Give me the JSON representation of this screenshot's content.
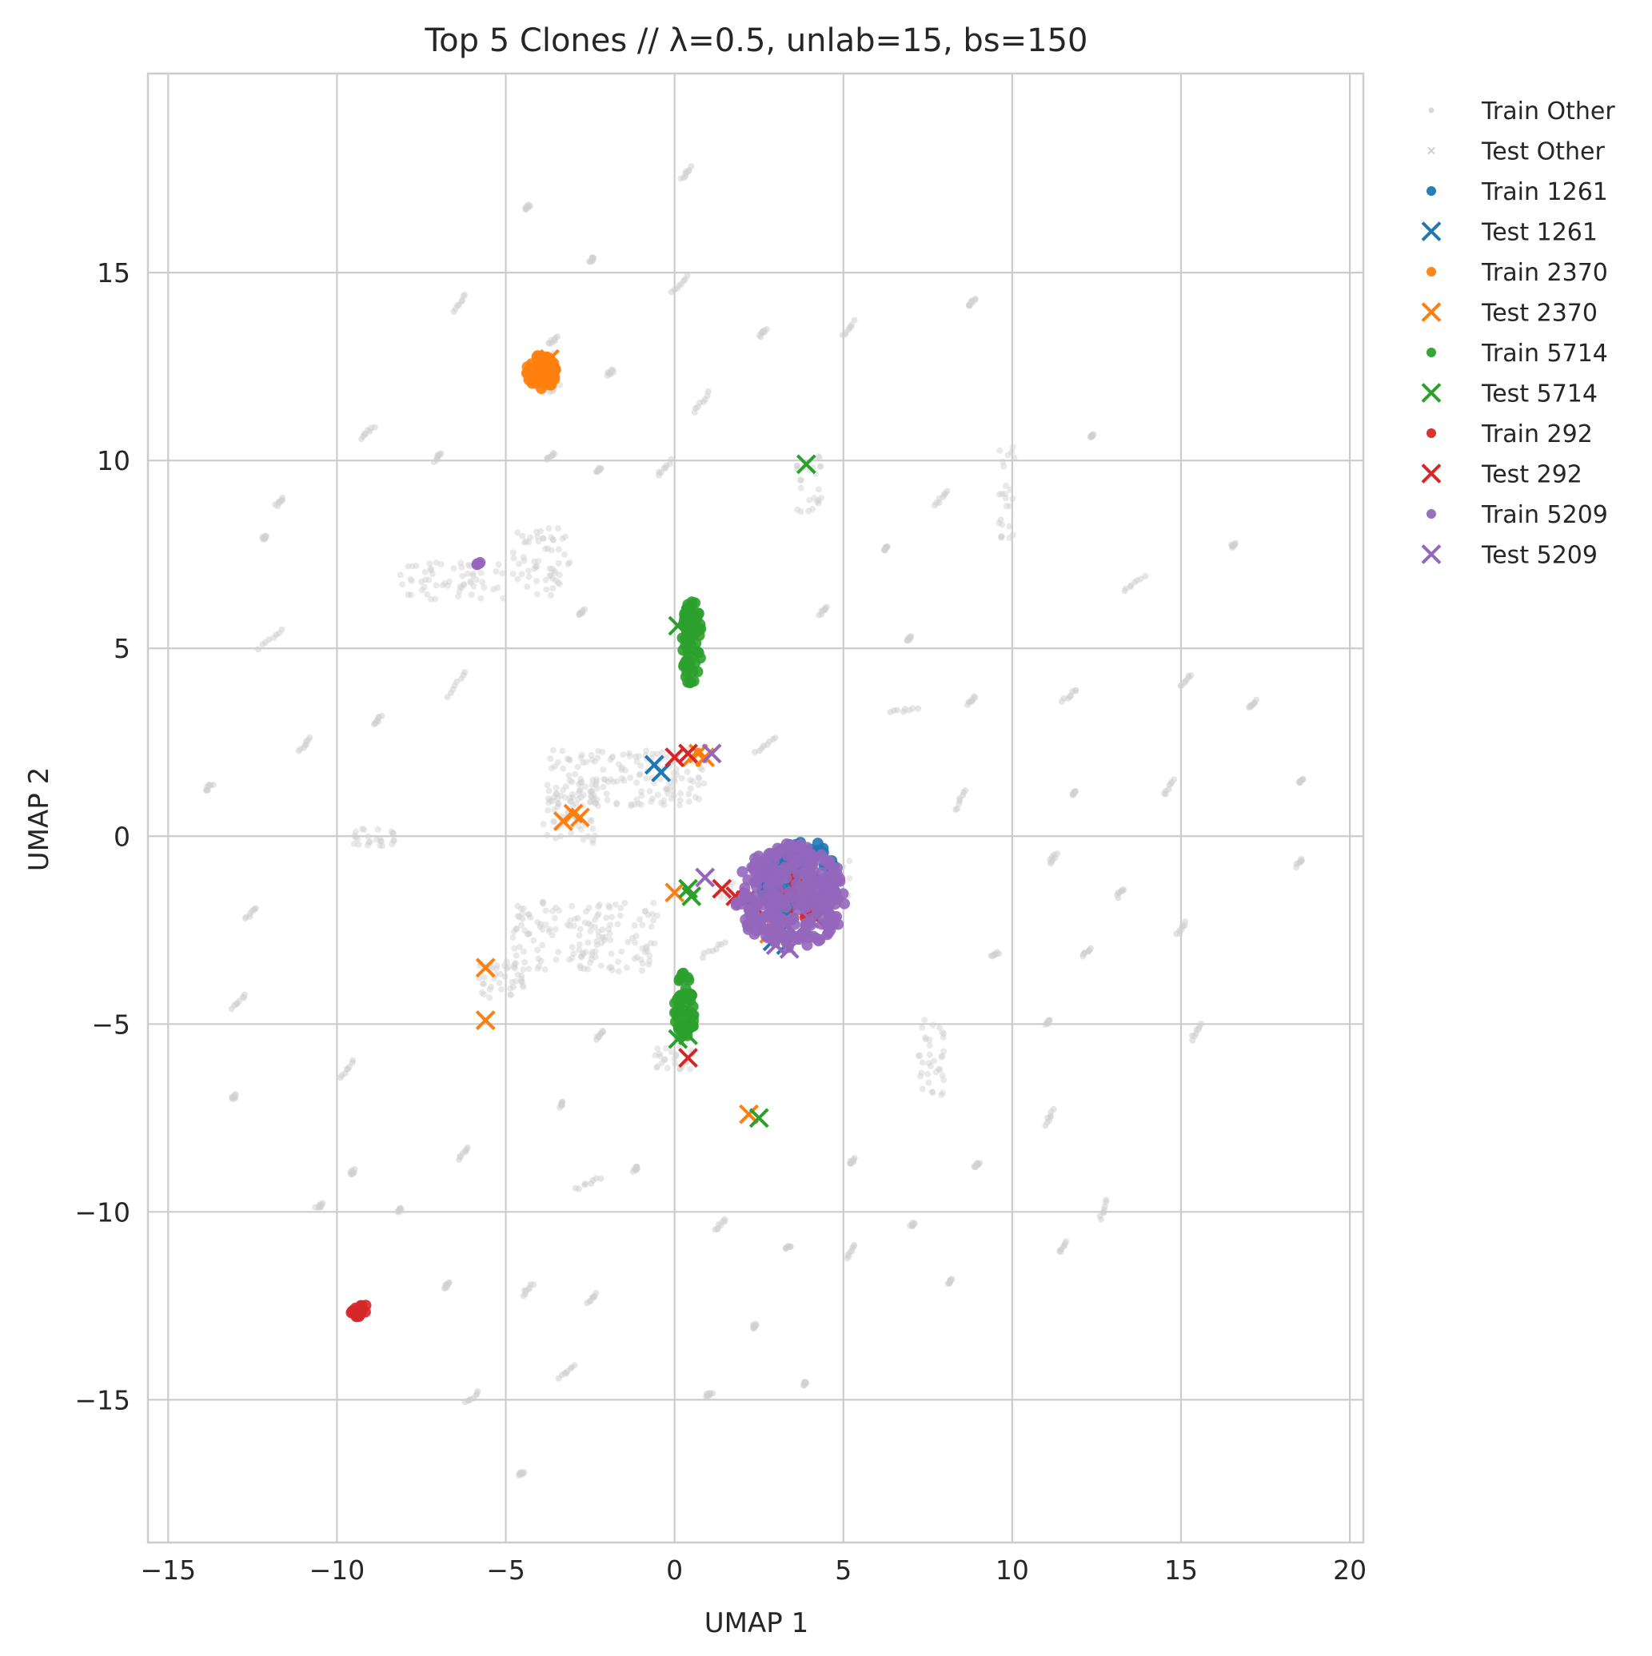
{
  "chart_data": {
    "type": "scatter",
    "title": "Top 5 Clones // λ=0.5, unlab=15, bs=150",
    "xlabel": "UMAP 1",
    "ylabel": "UMAP 2",
    "xlim": [
      -15.6,
      20.4
    ],
    "ylim": [
      -18.8,
      20.3
    ],
    "xticks": [
      -15,
      -10,
      -5,
      0,
      5,
      10,
      15,
      20
    ],
    "yticks": [
      -15,
      -10,
      -5,
      0,
      5,
      10,
      15
    ],
    "xtick_labels": [
      "−15",
      "−10",
      "−5",
      "0",
      "5",
      "10",
      "15",
      "20"
    ],
    "ytick_labels": [
      "−15",
      "−10",
      "−5",
      "0",
      "5",
      "10",
      "15"
    ],
    "grid": true,
    "legend_position": "outside-right-top",
    "background_clusters": [
      {
        "x": [
          -4.8,
          -3.1
        ],
        "y": [
          6.4,
          8.2
        ],
        "n": 60
      },
      {
        "x": [
          -8.2,
          -5.0
        ],
        "y": [
          6.3,
          7.3
        ],
        "n": 60
      },
      {
        "x": [
          -3.8,
          0.9
        ],
        "y": [
          0.8,
          2.3
        ],
        "n": 160
      },
      {
        "x": [
          -3.9,
          -2.3
        ],
        "y": [
          -0.2,
          1.5
        ],
        "n": 60
      },
      {
        "x": [
          -4.8,
          -0.5
        ],
        "y": [
          -3.6,
          -1.7
        ],
        "n": 160
      },
      {
        "x": [
          -5.8,
          -4.4
        ],
        "y": [
          -4.3,
          -3.3
        ],
        "n": 40
      },
      {
        "x": [
          7.2,
          8.0
        ],
        "y": [
          -7.0,
          -4.8
        ],
        "n": 35
      },
      {
        "x": [
          -0.6,
          0.6
        ],
        "y": [
          -6.2,
          -5.6
        ],
        "n": 25
      },
      {
        "x": [
          3.6,
          4.4
        ],
        "y": [
          8.6,
          10.2
        ],
        "n": 25
      },
      {
        "x": [
          9.6,
          10.1
        ],
        "y": [
          7.9,
          10.4
        ],
        "n": 25
      },
      {
        "x": [
          -9.6,
          -8.3
        ],
        "y": [
          -0.3,
          0.2
        ],
        "n": 25
      },
      {
        "x": [
          -4.4,
          -3.4
        ],
        "y": [
          11.8,
          13.0
        ],
        "n": 20
      },
      {
        "x": [
          1.3,
          5.2
        ],
        "y": [
          -2.2,
          -0.3
        ],
        "n": 40
      }
    ],
    "background_strokes": [
      {
        "x": [
          -6.5,
          -6.2
        ],
        "y": [
          14.0,
          14.4
        ]
      },
      {
        "x": [
          -0.1,
          0.4
        ],
        "y": [
          14.5,
          14.9
        ]
      },
      {
        "x": [
          0.2,
          0.5
        ],
        "y": [
          17.5,
          17.8
        ]
      },
      {
        "x": [
          -2.5,
          -2.4
        ],
        "y": [
          15.3,
          15.4
        ]
      },
      {
        "x": [
          -4.4,
          -4.3
        ],
        "y": [
          16.7,
          16.8
        ]
      },
      {
        "x": [
          -3.7,
          -3.5
        ],
        "y": [
          13.1,
          13.3
        ]
      },
      {
        "x": [
          -2.0,
          -1.8
        ],
        "y": [
          12.3,
          12.4
        ]
      },
      {
        "x": [
          2.5,
          2.7
        ],
        "y": [
          13.3,
          13.5
        ]
      },
      {
        "x": [
          5.0,
          5.3
        ],
        "y": [
          13.3,
          13.7
        ]
      },
      {
        "x": [
          8.7,
          8.9
        ],
        "y": [
          14.1,
          14.3
        ]
      },
      {
        "x": [
          0.6,
          1.0
        ],
        "y": [
          11.3,
          11.8
        ]
      },
      {
        "x": [
          -9.3,
          -8.9
        ],
        "y": [
          10.6,
          10.9
        ]
      },
      {
        "x": [
          -7.1,
          -6.9
        ],
        "y": [
          10.0,
          10.2
        ]
      },
      {
        "x": [
          -3.8,
          -3.6
        ],
        "y": [
          10.0,
          10.2
        ]
      },
      {
        "x": [
          -2.3,
          -2.2
        ],
        "y": [
          9.7,
          9.8
        ]
      },
      {
        "x": [
          -0.5,
          -0.1
        ],
        "y": [
          9.6,
          10.0
        ]
      },
      {
        "x": [
          -11.8,
          -11.6
        ],
        "y": [
          8.8,
          9.0
        ]
      },
      {
        "x": [
          -12.2,
          -12.1
        ],
        "y": [
          7.9,
          8.0
        ]
      },
      {
        "x": [
          -12.3,
          -11.6
        ],
        "y": [
          5.0,
          5.5
        ]
      },
      {
        "x": [
          -2.8,
          -2.7
        ],
        "y": [
          5.9,
          6.0
        ]
      },
      {
        "x": [
          4.3,
          4.5
        ],
        "y": [
          5.9,
          6.1
        ]
      },
      {
        "x": [
          6.2,
          6.3
        ],
        "y": [
          7.6,
          7.7
        ]
      },
      {
        "x": [
          7.7,
          8.1
        ],
        "y": [
          8.8,
          9.2
        ]
      },
      {
        "x": [
          12.3,
          12.4
        ],
        "y": [
          10.6,
          10.7
        ]
      },
      {
        "x": [
          13.3,
          13.9
        ],
        "y": [
          6.5,
          6.9
        ]
      },
      {
        "x": [
          16.5,
          16.6
        ],
        "y": [
          7.7,
          7.8
        ]
      },
      {
        "x": [
          15.0,
          15.3
        ],
        "y": [
          4.0,
          4.3
        ]
      },
      {
        "x": [
          11.5,
          11.9
        ],
        "y": [
          3.6,
          3.9
        ]
      },
      {
        "x": [
          8.7,
          8.9
        ],
        "y": [
          3.5,
          3.7
        ]
      },
      {
        "x": [
          6.4,
          7.2
        ],
        "y": [
          3.3,
          3.4
        ]
      },
      {
        "x": [
          6.9,
          7.0
        ],
        "y": [
          5.2,
          5.3
        ]
      },
      {
        "x": [
          17.0,
          17.2
        ],
        "y": [
          3.4,
          3.6
        ]
      },
      {
        "x": [
          -6.7,
          -6.2
        ],
        "y": [
          3.7,
          4.4
        ]
      },
      {
        "x": [
          -8.9,
          -8.7
        ],
        "y": [
          3.0,
          3.2
        ]
      },
      {
        "x": [
          -11.1,
          -10.8
        ],
        "y": [
          2.3,
          2.6
        ]
      },
      {
        "x": [
          -13.9,
          -13.7
        ],
        "y": [
          1.2,
          1.4
        ]
      },
      {
        "x": [
          8.3,
          8.6
        ],
        "y": [
          0.7,
          1.2
        ]
      },
      {
        "x": [
          11.8,
          11.9
        ],
        "y": [
          1.1,
          1.2
        ]
      },
      {
        "x": [
          14.5,
          14.8
        ],
        "y": [
          1.1,
          1.5
        ]
      },
      {
        "x": [
          18.5,
          18.6
        ],
        "y": [
          1.4,
          1.5
        ]
      },
      {
        "x": [
          -12.7,
          -12.4
        ],
        "y": [
          -2.2,
          -1.9
        ]
      },
      {
        "x": [
          -13.1,
          -12.7
        ],
        "y": [
          -4.6,
          -4.2
        ]
      },
      {
        "x": [
          -13.1,
          -13.0
        ],
        "y": [
          -7.0,
          -6.9
        ]
      },
      {
        "x": [
          -9.9,
          -9.5
        ],
        "y": [
          -6.4,
          -6.0
        ]
      },
      {
        "x": [
          -6.4,
          -6.1
        ],
        "y": [
          -8.6,
          -8.3
        ]
      },
      {
        "x": [
          -9.6,
          -9.5
        ],
        "y": [
          -9.0,
          -8.9
        ]
      },
      {
        "x": [
          -10.6,
          -10.4
        ],
        "y": [
          -9.9,
          -9.8
        ]
      },
      {
        "x": [
          -8.2,
          -8.1
        ],
        "y": [
          -10.0,
          -9.9
        ]
      },
      {
        "x": [
          -6.8,
          -6.7
        ],
        "y": [
          -12.0,
          -11.9
        ]
      },
      {
        "x": [
          -4.5,
          -4.2
        ],
        "y": [
          -12.2,
          -11.9
        ]
      },
      {
        "x": [
          -2.6,
          -2.3
        ],
        "y": [
          -12.4,
          -12.2
        ]
      },
      {
        "x": [
          -3.4,
          -3.0
        ],
        "y": [
          -14.4,
          -14.1
        ]
      },
      {
        "x": [
          -6.2,
          -5.8
        ],
        "y": [
          -15.1,
          -14.8
        ]
      },
      {
        "x": [
          -4.6,
          -4.5
        ],
        "y": [
          -17.0,
          -16.9
        ]
      },
      {
        "x": [
          -2.9,
          -2.2
        ],
        "y": [
          -9.4,
          -9.1
        ]
      },
      {
        "x": [
          -1.2,
          -1.1
        ],
        "y": [
          -8.9,
          -8.8
        ]
      },
      {
        "x": [
          -3.4,
          -3.3
        ],
        "y": [
          -7.2,
          -7.1
        ]
      },
      {
        "x": [
          -2.3,
          -2.1
        ],
        "y": [
          -5.4,
          -5.2
        ]
      },
      {
        "x": [
          1.2,
          1.5
        ],
        "y": [
          -10.5,
          -10.2
        ]
      },
      {
        "x": [
          3.3,
          3.4
        ],
        "y": [
          -11.0,
          -10.9
        ]
      },
      {
        "x": [
          5.1,
          5.3
        ],
        "y": [
          -11.2,
          -10.9
        ]
      },
      {
        "x": [
          2.3,
          2.4
        ],
        "y": [
          -13.1,
          -13.0
        ]
      },
      {
        "x": [
          0.9,
          1.1
        ],
        "y": [
          -14.9,
          -14.8
        ]
      },
      {
        "x": [
          3.8,
          3.9
        ],
        "y": [
          -14.6,
          -14.5
        ]
      },
      {
        "x": [
          5.2,
          5.3
        ],
        "y": [
          -8.7,
          -8.6
        ]
      },
      {
        "x": [
          7.0,
          7.1
        ],
        "y": [
          -10.4,
          -10.3
        ]
      },
      {
        "x": [
          8.1,
          8.2
        ],
        "y": [
          -11.9,
          -11.8
        ]
      },
      {
        "x": [
          8.9,
          9.0
        ],
        "y": [
          -8.8,
          -8.7
        ]
      },
      {
        "x": [
          11.0,
          11.2
        ],
        "y": [
          -7.7,
          -7.3
        ]
      },
      {
        "x": [
          12.6,
          12.8
        ],
        "y": [
          -10.2,
          -9.7
        ]
      },
      {
        "x": [
          11.4,
          11.6
        ],
        "y": [
          -11.1,
          -10.8
        ]
      },
      {
        "x": [
          11.0,
          11.1
        ],
        "y": [
          -5.0,
          -4.9
        ]
      },
      {
        "x": [
          12.1,
          12.3
        ],
        "y": [
          -3.2,
          -3.0
        ]
      },
      {
        "x": [
          14.9,
          15.1
        ],
        "y": [
          -2.6,
          -2.3
        ]
      },
      {
        "x": [
          15.3,
          15.6
        ],
        "y": [
          -5.4,
          -5.0
        ]
      },
      {
        "x": [
          9.4,
          9.6
        ],
        "y": [
          -3.2,
          -3.1
        ]
      },
      {
        "x": [
          11.1,
          11.3
        ],
        "y": [
          -0.7,
          -0.5
        ]
      },
      {
        "x": [
          13.1,
          13.3
        ],
        "y": [
          -1.6,
          -1.4
        ]
      },
      {
        "x": [
          18.4,
          18.6
        ],
        "y": [
          -0.8,
          -0.6
        ]
      },
      {
        "x": [
          0.8,
          1.5
        ],
        "y": [
          -3.2,
          -2.8
        ]
      },
      {
        "x": [
          2.4,
          3.0
        ],
        "y": [
          2.2,
          2.6
        ]
      }
    ],
    "series": [
      {
        "name": "Train Other",
        "marker": "dot",
        "color": "#cfcfcf"
      },
      {
        "name": "Test Other",
        "marker": "x",
        "color": "#cfcfcf"
      },
      {
        "name": "Train 1261",
        "marker": "dot",
        "color": "#1f77b4",
        "clusters": [
          {
            "x": [
              2.5,
              5.0
            ],
            "y": [
              -2.2,
              -0.1
            ],
            "n": 110
          }
        ]
      },
      {
        "name": "Test 1261",
        "marker": "x",
        "color": "#1f77b4",
        "points": [
          [
            -0.6,
            1.9
          ],
          [
            -0.4,
            1.7
          ],
          [
            2.5,
            -2.2
          ],
          [
            2.9,
            -2.8
          ],
          [
            3.2,
            -2.5
          ],
          [
            3.3,
            -2.9
          ],
          [
            2.8,
            -1.6
          ],
          [
            3.0,
            -2.0
          ]
        ]
      },
      {
        "name": "Train 2370",
        "marker": "dot",
        "color": "#ff7f0e",
        "clusters": [
          {
            "x": [
              -4.4,
              -3.5
            ],
            "y": [
              11.9,
              12.8
            ],
            "n": 80
          }
        ]
      },
      {
        "name": "Test 2370",
        "marker": "x",
        "color": "#ff7f0e",
        "points": [
          [
            -3.7,
            12.7
          ],
          [
            -3.3,
            0.4
          ],
          [
            -3.0,
            0.6
          ],
          [
            -2.8,
            0.5
          ],
          [
            -5.6,
            -3.5
          ],
          [
            -5.6,
            -4.9
          ],
          [
            0.0,
            -1.5
          ],
          [
            0.5,
            2.1
          ],
          [
            0.7,
            2.2
          ],
          [
            0.9,
            2.1
          ],
          [
            2.2,
            -7.4
          ],
          [
            2.7,
            -2.4
          ],
          [
            2.8,
            -2.6
          ],
          [
            4.4,
            -2.0
          ]
        ]
      },
      {
        "name": "Train 5714",
        "marker": "dot",
        "color": "#2ca02c",
        "clusters": [
          {
            "x": [
              0.2,
              0.8
            ],
            "y": [
              4.0,
              6.3
            ],
            "n": 70
          },
          {
            "x": [
              0.0,
              0.6
            ],
            "y": [
              -5.5,
              -3.6
            ],
            "n": 50
          }
        ]
      },
      {
        "name": "Test 5714",
        "marker": "x",
        "color": "#2ca02c",
        "points": [
          [
            3.9,
            9.9
          ],
          [
            0.1,
            5.6
          ],
          [
            0.4,
            -1.4
          ],
          [
            0.5,
            -1.6
          ],
          [
            0.1,
            -5.4
          ],
          [
            0.4,
            -5.3
          ],
          [
            2.5,
            -7.5
          ]
        ]
      },
      {
        "name": "Train 292",
        "marker": "dot",
        "color": "#d62728",
        "clusters": [
          {
            "x": [
              -9.6,
              -9.1
            ],
            "y": [
              -12.8,
              -12.4
            ],
            "n": 18
          },
          {
            "x": [
              3.0,
              4.3
            ],
            "y": [
              -2.2,
              -1.0
            ],
            "n": 20
          }
        ]
      },
      {
        "name": "Test 292",
        "marker": "x",
        "color": "#d62728",
        "points": [
          [
            0.0,
            2.1
          ],
          [
            0.4,
            2.2
          ],
          [
            1.4,
            -1.4
          ],
          [
            1.8,
            -1.6
          ],
          [
            2.1,
            -1.7
          ],
          [
            2.4,
            -1.9
          ],
          [
            3.4,
            -1.6
          ],
          [
            3.7,
            -1.8
          ],
          [
            4.2,
            -2.2
          ],
          [
            0.4,
            -5.9
          ]
        ]
      },
      {
        "name": "Train 5209",
        "marker": "dot",
        "color": "#9467bd",
        "clusters": [
          {
            "x": [
              -5.9,
              -5.7
            ],
            "y": [
              7.2,
              7.3
            ],
            "n": 4
          },
          {
            "x": [
              1.8,
              5.1
            ],
            "y": [
              -3.0,
              -0.2
            ],
            "n": 280
          }
        ]
      },
      {
        "name": "Test 5209",
        "marker": "x",
        "color": "#9467bd",
        "points": [
          [
            0.9,
            -1.1
          ],
          [
            1.1,
            2.2
          ],
          [
            3.0,
            -2.9
          ],
          [
            3.4,
            -3.0
          ],
          [
            3.6,
            -2.6
          ],
          [
            4.0,
            -2.2
          ],
          [
            3.2,
            -2.3
          ]
        ]
      }
    ]
  }
}
